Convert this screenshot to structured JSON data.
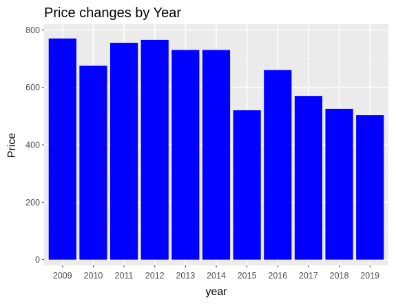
{
  "chart_data": {
    "type": "bar",
    "title": "Price changes by  Year",
    "xlabel": "year",
    "ylabel": "Price",
    "categories": [
      "2009",
      "2010",
      "2011",
      "2012",
      "2013",
      "2014",
      "2015",
      "2016",
      "2017",
      "2018",
      "2019"
    ],
    "values": [
      770,
      675,
      755,
      765,
      730,
      730,
      520,
      660,
      570,
      525,
      503
    ],
    "ylim": [
      -20,
      820
    ],
    "yticks": [
      0,
      200,
      400,
      600,
      800
    ],
    "grid": true,
    "legend": "none",
    "colors": {
      "bar": "#0000ff",
      "panel_background": "#ebebeb",
      "grid_major": "#ffffff",
      "grid_minor": "#f5f5f5",
      "tick_text": "#4d4d4d",
      "tick_mark": "#333333"
    }
  }
}
